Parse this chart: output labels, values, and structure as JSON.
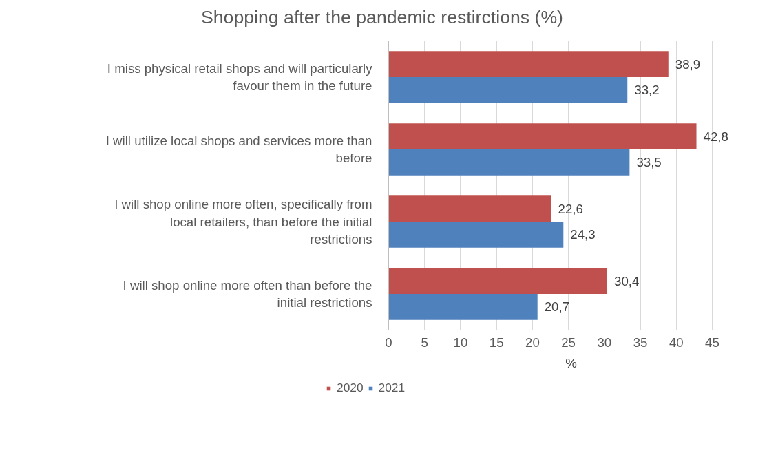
{
  "chart_data": {
    "type": "bar",
    "orientation": "horizontal",
    "title": "Shopping after the pandemic restirctions (%)",
    "xlabel": "%",
    "categories": [
      "I miss physical retail shops and will particularly favour them in the future",
      "I will utilize local shops and services more than before",
      "I will shop online more often, specifically from local retailers, than before the initial restrictions",
      "I will shop online more often than before the initial restrictions"
    ],
    "series": [
      {
        "name": "2020",
        "color": "#c0504d",
        "values": [
          38.9,
          42.8,
          22.6,
          30.4
        ],
        "value_labels": [
          "38,9",
          "42,8",
          "22,6",
          "30,4"
        ]
      },
      {
        "name": "2021",
        "color": "#4f81bd",
        "values": [
          33.2,
          33.5,
          24.3,
          20.7
        ],
        "value_labels": [
          "33,2",
          "33,5",
          "24,3",
          "20,7"
        ]
      }
    ],
    "xlim": [
      0,
      45
    ],
    "xticks": [
      0,
      5,
      10,
      15,
      20,
      25,
      30,
      35,
      40,
      45
    ],
    "grid": "x",
    "legend": "bottom"
  }
}
